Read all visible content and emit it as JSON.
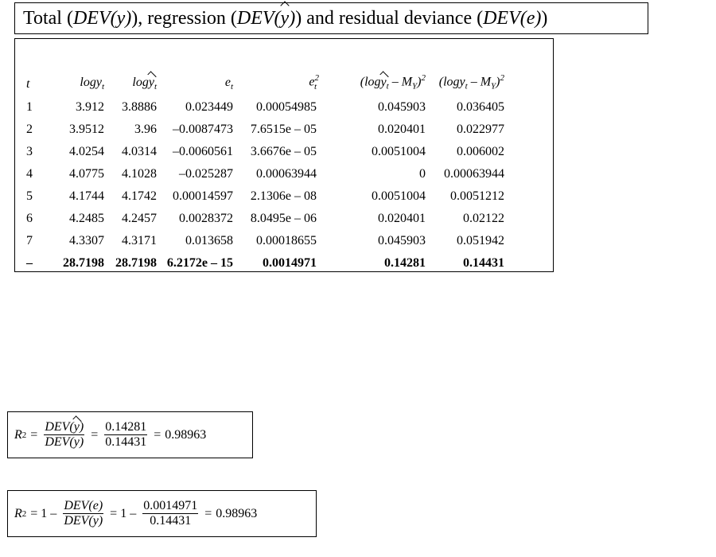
{
  "title": {
    "part1": "Total (",
    "dev_y": "DEV(y)",
    "part2": "), regression (",
    "dev_yhat_pre": "DEV(",
    "dev_yhat_y": "y",
    "dev_yhat_post": ")",
    "part3": ") and residual deviance (",
    "dev_e": "DEV(e)",
    "part4": ")"
  },
  "table": {
    "headers": {
      "t": "t",
      "logy": "logy",
      "logy_sub": "t",
      "logyhat_log": "log",
      "logyhat_y": "y",
      "logyhat_sub": "t",
      "e": "e",
      "e_sub": "t",
      "e2": "e",
      "e2_sub": "t",
      "e2_sup": "2",
      "reg_open": "(log",
      "reg_y": "y",
      "reg_sub": "t",
      "reg_minus": " – M",
      "reg_msub": "Y",
      "reg_close": ")",
      "reg_sup": "2",
      "tot": "(logy",
      "tot_sub": "t",
      "tot_minus": " – M",
      "tot_msub": "Y",
      "tot_close": ")",
      "tot_sup": "2"
    },
    "rows": [
      [
        "1",
        "3.912",
        "3.8886",
        "0.023449",
        "0.00054985",
        "0.045903",
        "0.036405"
      ],
      [
        "2",
        "3.9512",
        "3.96",
        "–0.0087473",
        "7.6515e – 05",
        "0.020401",
        "0.022977"
      ],
      [
        "3",
        "4.0254",
        "4.0314",
        "–0.0060561",
        "3.6676e – 05",
        "0.0051004",
        "0.006002"
      ],
      [
        "4",
        "4.0775",
        "4.1028",
        "–0.025287",
        "0.00063944",
        "0",
        "0.00063944"
      ],
      [
        "5",
        "4.1744",
        "4.1742",
        "0.00014597",
        "2.1306e – 08",
        "0.0051004",
        "0.0051212"
      ],
      [
        "6",
        "4.2485",
        "4.2457",
        "0.0028372",
        "8.0495e – 06",
        "0.020401",
        "0.02122"
      ],
      [
        "7",
        "4.3307",
        "4.3171",
        "0.013658",
        "0.00018655",
        "0.045903",
        "0.051942"
      ]
    ],
    "total": [
      "–",
      "28.7198",
      "28.7198",
      "6.2172e – 15",
      "0.0014971",
      "0.14281",
      "0.14431"
    ]
  },
  "formula1": {
    "lhs": "R",
    "lhs_sup": "2",
    "eq1": "=",
    "num1_pre": "DEV(",
    "num1_y": "y",
    "num1_post": ")",
    "den1": "DEV(y)",
    "eq2": "=",
    "num2": "0.14281",
    "den2": "0.14431",
    "eq3": "=",
    "result": "0.98963"
  },
  "formula2": {
    "lhs": "R",
    "lhs_sup": "2",
    "eq1": "= 1 –",
    "num1": "DEV(e)",
    "den1": "DEV(y)",
    "eq2": "= 1 –",
    "num2": "0.0014971",
    "den2": "0.14431",
    "eq3": "=",
    "result": "0.98963"
  }
}
